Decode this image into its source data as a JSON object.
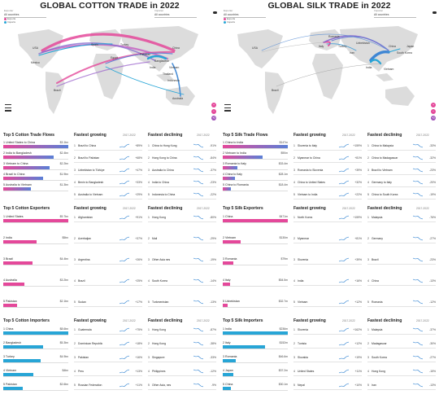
{
  "colors": {
    "pink": "#e4489a",
    "blue": "#27a5d6",
    "gradient_start": "#e4489a",
    "gradient_end": "#5a7fd6",
    "grey": "#bdbdbd",
    "spark_up": "#2a7fd0",
    "spark_down": "#2a7fd0"
  },
  "cotton": {
    "title": "GLOBAL COTTON TRADE in 2022",
    "selector_left": {
      "caption": "Exporter",
      "value": "All countries"
    },
    "selector_right": {
      "caption": "Importer",
      "value": "All countries"
    },
    "legend": [
      "Exports",
      "Imports"
    ],
    "flows_title": "Top 5 Cotton Trade Flows",
    "flows": [
      {
        "label": "United States to China",
        "value": "$3.1bn"
      },
      {
        "label": "India to Bangladesh",
        "value": "$2.4bn"
      },
      {
        "label": "Vietnam to China",
        "value": "$2.2bn"
      },
      {
        "label": "Brazil to China",
        "value": "$1.9bn"
      },
      {
        "label": "Australia to Vietnam",
        "value": "$1.3bn"
      }
    ],
    "exporters_title": "Top 5 Cotton Exporters",
    "exporters": [
      {
        "label": "United States",
        "value": "$9.7bn"
      },
      {
        "label": "India",
        "value": "$5bn"
      },
      {
        "label": "Brazil",
        "value": "$4.4bn"
      },
      {
        "label": "Australia",
        "value": "$3.2bn"
      },
      {
        "label": "Pakistan",
        "value": "$2.1bn"
      }
    ],
    "importers_title": "Top 5 Cotton Importers",
    "importers": [
      {
        "label": "China",
        "value": "$8.6bn"
      },
      {
        "label": "Bangladesh",
        "value": "$5.3bn"
      },
      {
        "label": "Turkey",
        "value": "$4.9bn"
      },
      {
        "label": "Vietnam",
        "value": "$4bn"
      },
      {
        "label": "Pakistan",
        "value": "$2.6bn"
      }
    ],
    "growth_tables": [
      {
        "title": "Fastest growing",
        "range": "2017-2022",
        "rows": [
          {
            "rank": "1",
            "name": "Brazil to China",
            "pct": "+89%"
          },
          {
            "rank": "2",
            "name": "Brazil to Pakistan",
            "pct": "+68%"
          },
          {
            "rank": "3",
            "name": "Uzbekistan to Türkiye",
            "pct": "+47%"
          },
          {
            "rank": "4",
            "name": "Benin to Bangladesh",
            "pct": "+33%"
          },
          {
            "rank": "5",
            "name": "Australia to Vietnam",
            "pct": "+29%"
          }
        ]
      },
      {
        "title": "Fastest declining",
        "range": "2017-2022",
        "rows": [
          {
            "rank": "1",
            "name": "China to Hong Kong",
            "pct": "-91%"
          },
          {
            "rank": "2",
            "name": "Hong Kong to China",
            "pct": "-84%"
          },
          {
            "rank": "3",
            "name": "Australia to China",
            "pct": "-37%"
          },
          {
            "rank": "4",
            "name": "India to China",
            "pct": "-23%"
          },
          {
            "rank": "5",
            "name": "Indonesia to China",
            "pct": "-22%"
          }
        ]
      },
      {
        "title": "Fastest growing",
        "range": "2017-2022",
        "rows": [
          {
            "rank": "1",
            "name": "Afghanistan",
            "pct": "+91%"
          },
          {
            "rank": "2",
            "name": "Azerbaijan",
            "pct": "+37%"
          },
          {
            "rank": "3",
            "name": "Argentina",
            "pct": "+26%"
          },
          {
            "rank": "4",
            "name": "Brazil",
            "pct": "+25%"
          },
          {
            "rank": "5",
            "name": "Sudan",
            "pct": "+17%"
          }
        ]
      },
      {
        "title": "Fastest declining",
        "range": "2017-2022",
        "rows": [
          {
            "rank": "1",
            "name": "Hong Kong",
            "pct": "-80%"
          },
          {
            "rank": "2",
            "name": "Mali",
            "pct": "-29%"
          },
          {
            "rank": "3",
            "name": "Other Asia nes",
            "pct": "-19%"
          },
          {
            "rank": "4",
            "name": "South Korea",
            "pct": "-14%"
          },
          {
            "rank": "5",
            "name": "Turkmenistan",
            "pct": "-13%"
          }
        ]
      },
      {
        "title": "Fastest growing",
        "range": "2017-2022",
        "rows": [
          {
            "rank": "1",
            "name": "Guatemala",
            "pct": "+75%"
          },
          {
            "rank": "2",
            "name": "Dominican Republic",
            "pct": "+18%"
          },
          {
            "rank": "3",
            "name": "Pakistan",
            "pct": "+16%"
          },
          {
            "rank": "4",
            "name": "Peru",
            "pct": "+13%"
          },
          {
            "rank": "5",
            "name": "Russian Federation",
            "pct": "+11%"
          }
        ]
      },
      {
        "title": "Fastest declining",
        "range": "2017-2022",
        "rows": [
          {
            "rank": "1",
            "name": "Hong Kong",
            "pct": "-87%"
          },
          {
            "rank": "2",
            "name": "Hong Kong",
            "pct": "-38%"
          },
          {
            "rank": "3",
            "name": "Singapore",
            "pct": "-33%"
          },
          {
            "rank": "4",
            "name": "Philippines",
            "pct": "-12%"
          },
          {
            "rank": "5",
            "name": "Other Asia, nes",
            "pct": "-9%"
          }
        ]
      }
    ],
    "map_labels": [
      "USA",
      "Brazil",
      "Mexico",
      "Spain",
      "Egypt",
      "Turkey",
      "China",
      "India",
      "Pakistan",
      "Vietnam",
      "Bangladesh",
      "Indonesia",
      "Australia",
      "Thailand"
    ]
  },
  "silk": {
    "title": "GLOBAL SILK TRADE in 2022",
    "selector_left": {
      "caption": "Exporter",
      "value": "All countries"
    },
    "selector_right": {
      "caption": "Importer",
      "value": "All countries"
    },
    "legend": [
      "Exports",
      "Imports"
    ],
    "flows_title": "Top 5 Silk Trade Flows",
    "flows": [
      {
        "label": "China to India",
        "value": "$147m"
      },
      {
        "label": "Vietnam to India",
        "value": "$90m"
      },
      {
        "label": "Romania to Italy",
        "value": "$33.4m"
      },
      {
        "label": "China to Italy",
        "value": "$28.1m"
      },
      {
        "label": "China to Romania",
        "value": "$18.4m"
      }
    ],
    "exporters_title": "Top 5 Silk Exporters",
    "exporters": [
      {
        "label": "China",
        "value": "$471m"
      },
      {
        "label": "Vietnam",
        "value": "$130m"
      },
      {
        "label": "Romania",
        "value": "$79m"
      },
      {
        "label": "Italy",
        "value": "$54.5m"
      },
      {
        "label": "Uzbekistan",
        "value": "$32.7m"
      }
    ],
    "importers_title": "Top 5 Silk Importers",
    "importers": [
      {
        "label": "India",
        "value": "$236m"
      },
      {
        "label": "Italy",
        "value": "$152m"
      },
      {
        "label": "Romania",
        "value": "$46.6m"
      },
      {
        "label": "Japan",
        "value": "$37.2m"
      },
      {
        "label": "China",
        "value": "$30.1m"
      }
    ],
    "growth_tables": [
      {
        "title": "Fastest growing",
        "range": "2017-2022",
        "rows": [
          {
            "rank": "1",
            "name": "Slovenia to Italy",
            "pct": "+159%"
          },
          {
            "rank": "2",
            "name": "Myanmar to China",
            "pct": "+81%"
          },
          {
            "rank": "3",
            "name": "Romania to Slovenia",
            "pct": "+39%"
          },
          {
            "rank": "4",
            "name": "China to United States",
            "pct": "+32%"
          },
          {
            "rank": "5",
            "name": "Vietnam to India",
            "pct": "+22%"
          }
        ]
      },
      {
        "title": "Fastest declining",
        "range": "2017-2022",
        "rows": [
          {
            "rank": "1",
            "name": "China to Malaysia",
            "pct": "-33%"
          },
          {
            "rank": "2",
            "name": "China to Madagascar",
            "pct": "-32%"
          },
          {
            "rank": "3",
            "name": "Brazil to Vietnam",
            "pct": "-23%"
          },
          {
            "rank": "4",
            "name": "Germany to Italy",
            "pct": "-20%"
          },
          {
            "rank": "5",
            "name": "China to South Korea",
            "pct": "-19%"
          }
        ]
      },
      {
        "title": "Fastest growing",
        "range": "2017-2022",
        "rows": [
          {
            "rank": "1",
            "name": "North Korea",
            "pct": "+159%"
          },
          {
            "rank": "2",
            "name": "Myanmar",
            "pct": "+81%"
          },
          {
            "rank": "3",
            "name": "Slovenia",
            "pct": "+39%"
          },
          {
            "rank": "4",
            "name": "India",
            "pct": "+16%"
          },
          {
            "rank": "5",
            "name": "Vietnam",
            "pct": "+12%"
          }
        ]
      },
      {
        "title": "Fastest declining",
        "range": "2017-2022",
        "rows": [
          {
            "rank": "1",
            "name": "Malaysia",
            "pct": "-76%"
          },
          {
            "rank": "2",
            "name": "Germany",
            "pct": "-27%"
          },
          {
            "rank": "3",
            "name": "Brazil",
            "pct": "-23%"
          },
          {
            "rank": "4",
            "name": "China",
            "pct": "-13%"
          },
          {
            "rank": "5",
            "name": "Romania",
            "pct": "-12%"
          }
        ]
      },
      {
        "title": "Fastest growing",
        "range": "2017-2022",
        "rows": [
          {
            "rank": "1",
            "name": "Slovenia",
            "pct": "+162%"
          },
          {
            "rank": "2",
            "name": "Tunisia",
            "pct": "+12%"
          },
          {
            "rank": "3",
            "name": "Slovakia",
            "pct": "+19%"
          },
          {
            "rank": "4",
            "name": "United States",
            "pct": "+11%"
          },
          {
            "rank": "5",
            "name": "Nepal",
            "pct": "+10%"
          }
        ]
      },
      {
        "title": "Fastest declining",
        "range": "2017-2022",
        "rows": [
          {
            "rank": "1",
            "name": "Malaysia",
            "pct": "-37%"
          },
          {
            "rank": "2",
            "name": "Madagascar",
            "pct": "-30%"
          },
          {
            "rank": "3",
            "name": "South Korea",
            "pct": "-27%"
          },
          {
            "rank": "4",
            "name": "Hong Kong",
            "pct": "-15%"
          },
          {
            "rank": "5",
            "name": "Iran",
            "pct": "-13%"
          }
        ]
      }
    ],
    "map_labels": [
      "Italy",
      "Romania",
      "Turkey",
      "Iran",
      "Uzbekistan",
      "India",
      "China",
      "Vietnam",
      "Japan",
      "South Korea",
      "Brazil",
      "USA"
    ]
  },
  "chart_data": [
    {
      "type": "bar",
      "title": "Top 5 Cotton Trade Flows",
      "categories": [
        "United States to China",
        "India to Bangladesh",
        "Vietnam to China",
        "Brazil to China",
        "Australia to Vietnam"
      ],
      "values": [
        3.1,
        2.4,
        2.2,
        1.9,
        1.3
      ]
    },
    {
      "type": "bar",
      "title": "Top 5 Cotton Exporters",
      "categories": [
        "United States",
        "India",
        "Brazil",
        "Australia",
        "Pakistan"
      ],
      "values": [
        9.7,
        5.0,
        4.4,
        3.2,
        2.1
      ]
    },
    {
      "type": "bar",
      "title": "Top 5 Cotton Importers",
      "categories": [
        "China",
        "Bangladesh",
        "Turkey",
        "Vietnam",
        "Pakistan"
      ],
      "values": [
        8.6,
        5.3,
        4.9,
        4.0,
        2.6
      ]
    },
    {
      "type": "bar",
      "title": "Top 5 Silk Trade Flows",
      "categories": [
        "China to India",
        "Vietnam to India",
        "Romania to Italy",
        "China to Italy",
        "China to Romania"
      ],
      "values": [
        147,
        90,
        33.4,
        28.1,
        18.4
      ]
    },
    {
      "type": "bar",
      "title": "Top 5 Silk Exporters",
      "categories": [
        "China",
        "Vietnam",
        "Romania",
        "Italy",
        "Uzbekistan"
      ],
      "values": [
        471,
        130,
        79,
        54.5,
        32.7
      ]
    },
    {
      "type": "bar",
      "title": "Top 5 Silk Importers",
      "categories": [
        "India",
        "Italy",
        "Romania",
        "Japan",
        "China"
      ],
      "values": [
        236,
        152,
        46.6,
        37.2,
        30.1
      ]
    }
  ]
}
